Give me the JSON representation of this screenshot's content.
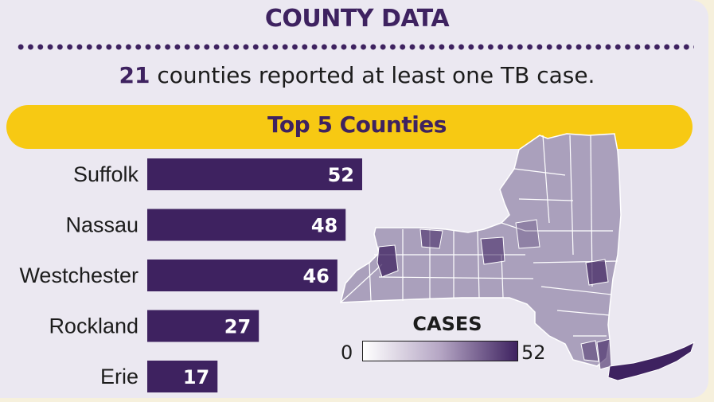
{
  "header": {
    "title": "COUNTY DATA"
  },
  "summary": {
    "count": "21",
    "text": " counties reported at least one TB case."
  },
  "banner": {
    "title": "Top 5 Counties"
  },
  "chart_data": {
    "type": "bar",
    "orientation": "horizontal",
    "title": "Top 5 Counties",
    "categories": [
      "Suffolk",
      "Nassau",
      "Westchester",
      "Rockland",
      "Erie"
    ],
    "values": [
      52,
      48,
      46,
      27,
      17
    ],
    "data_labels": true,
    "bar_color": "#3e2260"
  },
  "map": {
    "legend_title": "CASES",
    "legend_min": "0",
    "legend_max": "52",
    "scale_colors": [
      "#ffffff",
      "#3e2260"
    ],
    "base_color": "#aaa0bc",
    "highlight_color": "#3e2260"
  },
  "colors": {
    "background": "#ebe8f1",
    "accent": "#3e2260",
    "banner": "#f7c913"
  }
}
